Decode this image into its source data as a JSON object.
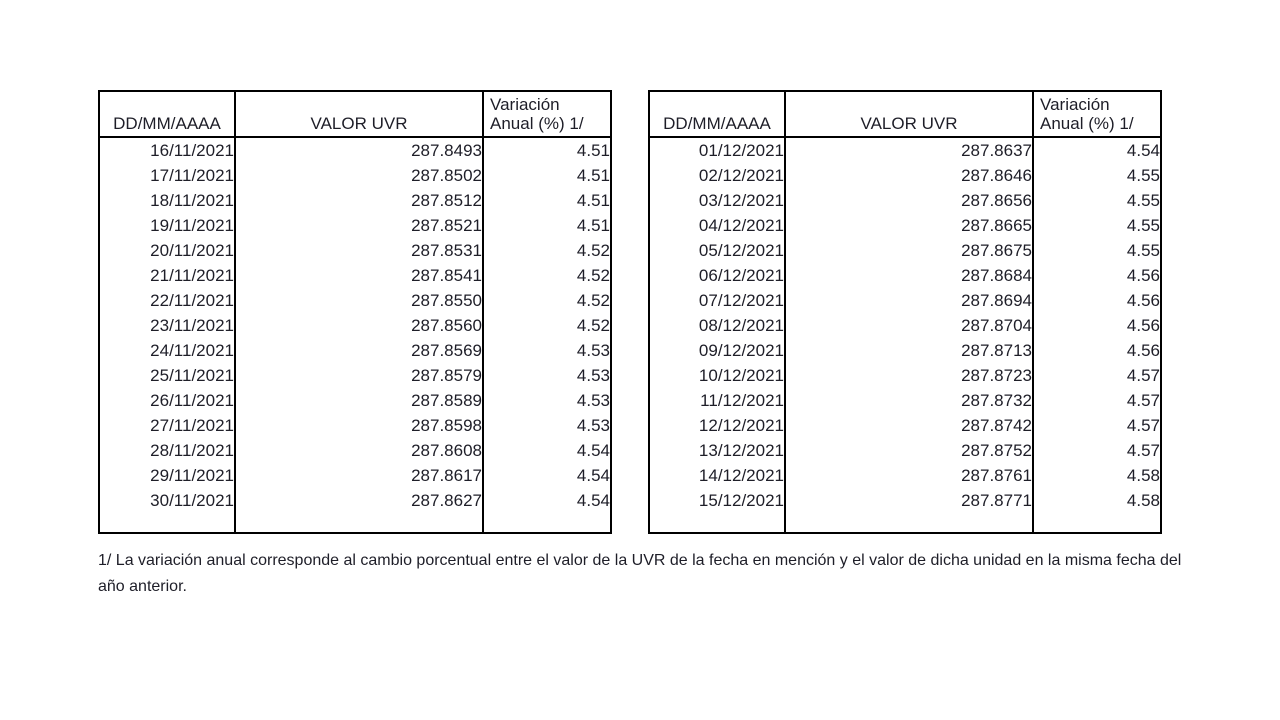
{
  "columns": {
    "date": "DD/MM/AAAA",
    "value": "VALOR UVR",
    "variation_line1": "Variación",
    "variation_line2": "Anual (%) 1/"
  },
  "left_table": {
    "rows": [
      {
        "date": "16/11/2021",
        "value": "287.8493",
        "variation": "4.51"
      },
      {
        "date": "17/11/2021",
        "value": "287.8502",
        "variation": "4.51"
      },
      {
        "date": "18/11/2021",
        "value": "287.8512",
        "variation": "4.51"
      },
      {
        "date": "19/11/2021",
        "value": "287.8521",
        "variation": "4.51"
      },
      {
        "date": "20/11/2021",
        "value": "287.8531",
        "variation": "4.52"
      },
      {
        "date": "21/11/2021",
        "value": "287.8541",
        "variation": "4.52"
      },
      {
        "date": "22/11/2021",
        "value": "287.8550",
        "variation": "4.52"
      },
      {
        "date": "23/11/2021",
        "value": "287.8560",
        "variation": "4.52"
      },
      {
        "date": "24/11/2021",
        "value": "287.8569",
        "variation": "4.53"
      },
      {
        "date": "25/11/2021",
        "value": "287.8579",
        "variation": "4.53"
      },
      {
        "date": "26/11/2021",
        "value": "287.8589",
        "variation": "4.53"
      },
      {
        "date": "27/11/2021",
        "value": "287.8598",
        "variation": "4.53"
      },
      {
        "date": "28/11/2021",
        "value": "287.8608",
        "variation": "4.54"
      },
      {
        "date": "29/11/2021",
        "value": "287.8617",
        "variation": "4.54"
      },
      {
        "date": "30/11/2021",
        "value": "287.8627",
        "variation": "4.54"
      }
    ]
  },
  "right_table": {
    "rows": [
      {
        "date": "01/12/2021",
        "value": "287.8637",
        "variation": "4.54"
      },
      {
        "date": "02/12/2021",
        "value": "287.8646",
        "variation": "4.55"
      },
      {
        "date": "03/12/2021",
        "value": "287.8656",
        "variation": "4.55"
      },
      {
        "date": "04/12/2021",
        "value": "287.8665",
        "variation": "4.55"
      },
      {
        "date": "05/12/2021",
        "value": "287.8675",
        "variation": "4.55"
      },
      {
        "date": "06/12/2021",
        "value": "287.8684",
        "variation": "4.56"
      },
      {
        "date": "07/12/2021",
        "value": "287.8694",
        "variation": "4.56"
      },
      {
        "date": "08/12/2021",
        "value": "287.8704",
        "variation": "4.56"
      },
      {
        "date": "09/12/2021",
        "value": "287.8713",
        "variation": "4.56"
      },
      {
        "date": "10/12/2021",
        "value": "287.8723",
        "variation": "4.57"
      },
      {
        "date": "11/12/2021",
        "value": "287.8732",
        "variation": "4.57"
      },
      {
        "date": "12/12/2021",
        "value": "287.8742",
        "variation": "4.57"
      },
      {
        "date": "13/12/2021",
        "value": "287.8752",
        "variation": "4.57"
      },
      {
        "date": "14/12/2021",
        "value": "287.8761",
        "variation": "4.58"
      },
      {
        "date": "15/12/2021",
        "value": "287.8771",
        "variation": "4.58"
      }
    ]
  },
  "footnote": "1/ La variación anual corresponde al cambio porcentual entre el valor de la UVR de la fecha en mención y el valor de dicha unidad en la misma fecha del año anterior."
}
